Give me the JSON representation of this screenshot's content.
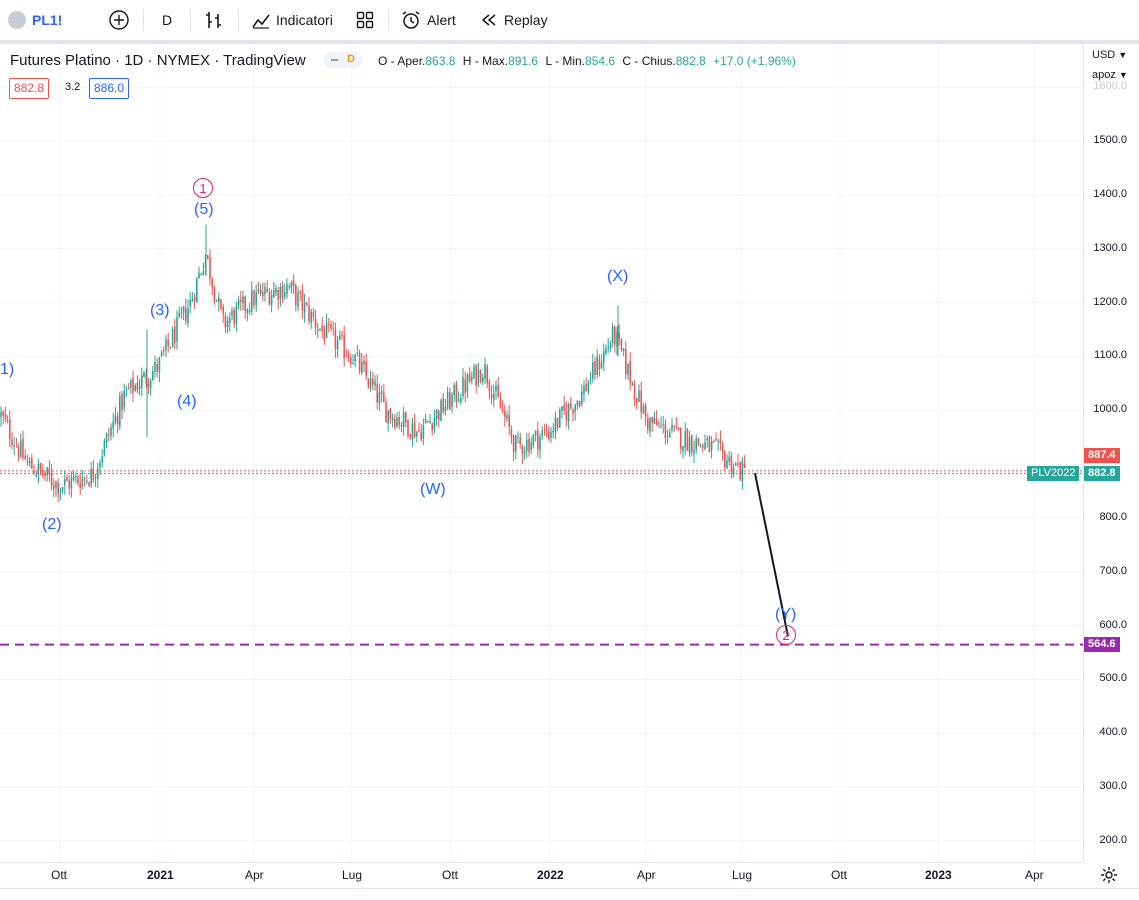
{
  "toolbar": {
    "symbol": "PL1!",
    "interval": "D",
    "indicators_label": "Indicatori",
    "alert_label": "Alert",
    "replay_label": "Replay"
  },
  "legend": {
    "title": "Futures Platino · 1D · NYMEX · TradingView",
    "badge": "D",
    "open_label": "O - Aper.",
    "open": "863.8",
    "high_label": "H - Max.",
    "high": "891.6",
    "low_label": "L - Min.",
    "low": "854.6",
    "close_label": "C - Chius.",
    "close": "882.8",
    "change": "+17.0 (+1.96%)",
    "bid": "882.8",
    "spread": "3.2",
    "ask": "886.0"
  },
  "price_scale": {
    "currency": "USD",
    "mode": "apoz",
    "ticks": [
      "1600.0",
      "1500.0",
      "1400.0",
      "1300.0",
      "1200.0",
      "1100.0",
      "1000.0",
      "800.0",
      "700.0",
      "600.0",
      "500.0",
      "400.0",
      "300.0",
      "200.0"
    ],
    "tag_high": "887.4",
    "tag_symbol": "PLV2022",
    "tag_last": "882.8",
    "tag_target": "564.6"
  },
  "time_scale": {
    "labels": [
      "Ott",
      "2021",
      "Apr",
      "Lug",
      "Ott",
      "2022",
      "Apr",
      "Lug",
      "Ott",
      "2023",
      "Apr"
    ]
  },
  "waves": {
    "w1_partial": "1)",
    "w2": "(2)",
    "w3": "(3)",
    "w4": "(4)",
    "w5": "(5)",
    "circ1": "1",
    "wW": "(W)",
    "wX": "(X)",
    "wY": "(Y)",
    "circ2": "2"
  },
  "colors": {
    "up": "#26a69a",
    "down": "#ef5350",
    "wave_blue": "#2962ff",
    "wave_pink": "#e91e63",
    "target_line": "#9c27b0"
  },
  "chart_data": {
    "type": "candlestick",
    "title": "Futures Platino · 1D · NYMEX · TradingView",
    "ylim": [
      150,
      1650
    ],
    "x_labels": [
      "Ott",
      "2021",
      "Apr",
      "Lug",
      "Ott",
      "2022",
      "Apr",
      "Lug",
      "Ott",
      "2023",
      "Apr"
    ],
    "path_approx": [
      [
        "2020-08",
        1010
      ],
      [
        "2020-09",
        900
      ],
      [
        "2020-10",
        860
      ],
      [
        "2020-11",
        880
      ],
      [
        "2020-12",
        1030
      ],
      [
        "2021-01",
        1080
      ],
      [
        "2021-02",
        1200
      ],
      [
        "2021-02-15",
        1290
      ],
      [
        "2021-03",
        1160
      ],
      [
        "2021-04",
        1210
      ],
      [
        "2021-05",
        1230
      ],
      [
        "2021-06",
        1150
      ],
      [
        "2021-07",
        1100
      ],
      [
        "2021-08",
        1000
      ],
      [
        "2021-09",
        960
      ],
      [
        "2021-10",
        1020
      ],
      [
        "2021-11",
        1080
      ],
      [
        "2021-12",
        930
      ],
      [
        "2022-01",
        960
      ],
      [
        "2022-02",
        1030
      ],
      [
        "2022-03",
        1140
      ],
      [
        "2022-04",
        980
      ],
      [
        "2022-05",
        950
      ],
      [
        "2022-06",
        930
      ],
      [
        "2022-07",
        882.8
      ]
    ],
    "last_close": 882.8,
    "projection": {
      "from": 882.8,
      "to": 580
    },
    "target_level": 564.6
  }
}
